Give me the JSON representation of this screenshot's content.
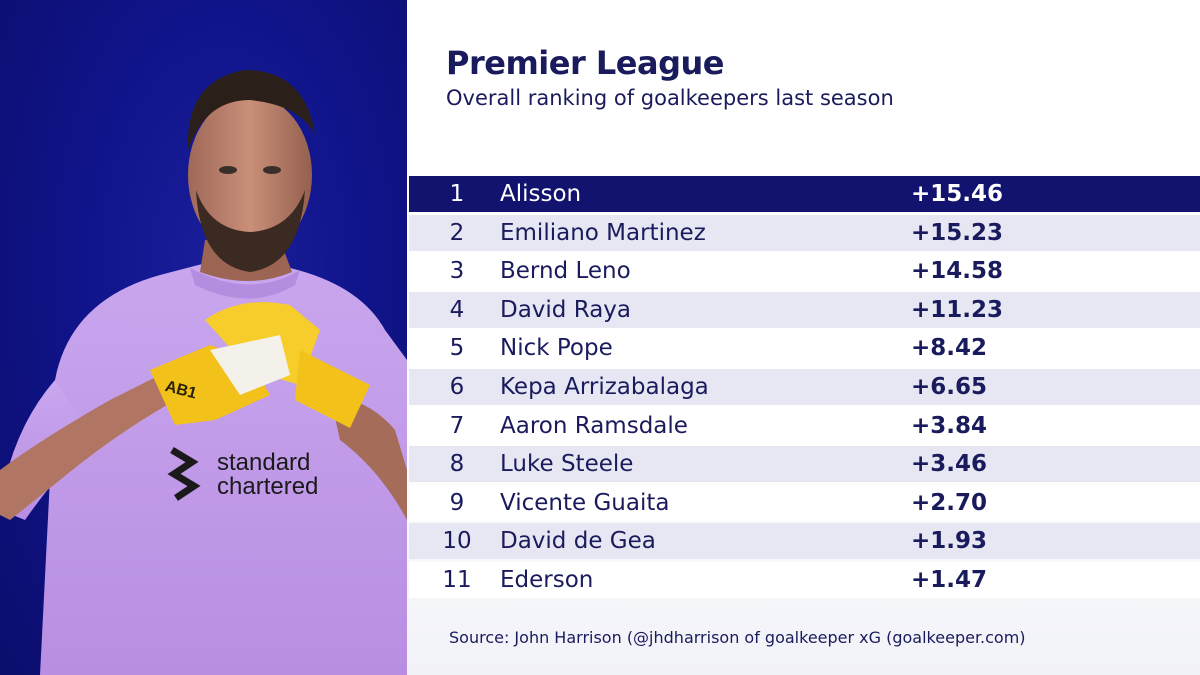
{
  "header": {
    "title": "Premier League",
    "subtitle": "Overall ranking of goalkeepers last season"
  },
  "player_photo": {
    "shirt_sponsor": "standard chartered",
    "glove_text": "AB1"
  },
  "table": {
    "rows": [
      {
        "rank": "1",
        "name": "Alisson",
        "score": "+15.46"
      },
      {
        "rank": "2",
        "name": "Emiliano Martinez",
        "score": "+15.23"
      },
      {
        "rank": "3",
        "name": "Bernd Leno",
        "score": "+14.58"
      },
      {
        "rank": "4",
        "name": "David Raya",
        "score": "+11.23"
      },
      {
        "rank": "5",
        "name": "Nick Pope",
        "score": "+8.42"
      },
      {
        "rank": "6",
        "name": "Kepa Arrizabalaga",
        "score": "+6.65"
      },
      {
        "rank": "7",
        "name": "Aaron Ramsdale",
        "score": "+3.84"
      },
      {
        "rank": "8",
        "name": "Luke Steele",
        "score": "+3.46"
      },
      {
        "rank": "9",
        "name": "Vicente Guaita",
        "score": "+2.70"
      },
      {
        "rank": "10",
        "name": "David de Gea",
        "score": "+1.93"
      },
      {
        "rank": "11",
        "name": "Ederson",
        "score": "+1.47"
      }
    ]
  },
  "footer": {
    "source": "Source: John Harrison (@jhdharrison of goalkeeper xG (goalkeeper.com)"
  },
  "colors": {
    "navy": "#11136e",
    "text": "#1a1b5c",
    "stripe": "#e6e7f2",
    "shirt": "#c7a3ea",
    "gloves": "#f2c21b"
  }
}
